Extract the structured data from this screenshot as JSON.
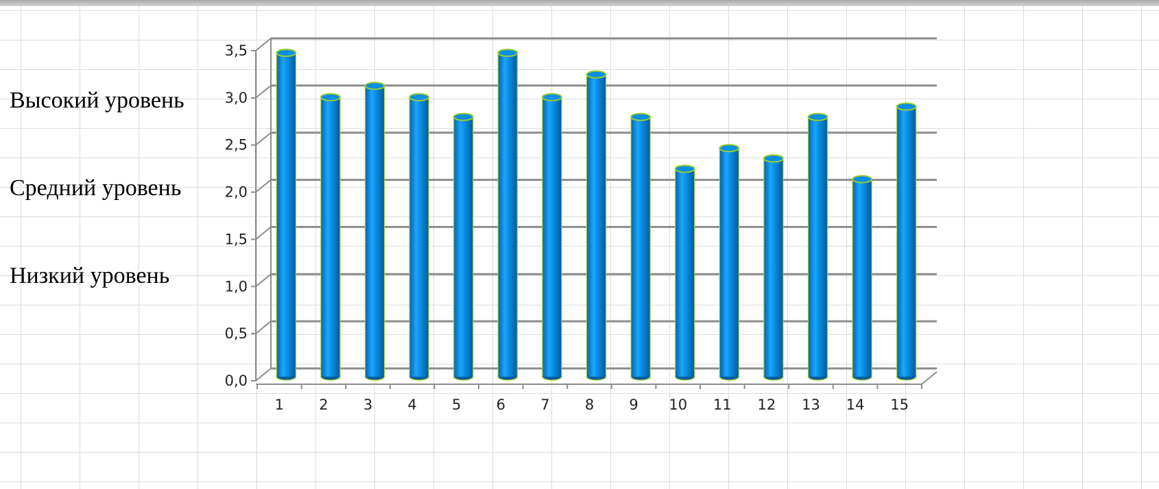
{
  "side_labels": {
    "high": "Высокий уровень",
    "medium": "Средний уровень",
    "low": "Низкий уровень"
  },
  "colors": {
    "bar_fill": "#0a8fe3",
    "bar_outline": "#9acd32",
    "gridline": "#8c8c8c",
    "axis": "#8c8c8c"
  },
  "chart_data": {
    "type": "bar",
    "bar_shape": "cylinder-3d",
    "categories": [
      "1",
      "2",
      "3",
      "4",
      "5",
      "6",
      "7",
      "8",
      "9",
      "10",
      "11",
      "12",
      "13",
      "14",
      "15"
    ],
    "values": [
      3.47,
      3.0,
      3.12,
      3.0,
      2.79,
      3.47,
      3.0,
      3.24,
      2.79,
      2.24,
      2.46,
      2.35,
      2.79,
      2.13,
      2.9
    ],
    "ylim": [
      0,
      3.5
    ],
    "yticks": [
      "0,0",
      "0,5",
      "1,0",
      "1,5",
      "2,0",
      "2,5",
      "3,0",
      "3,5"
    ],
    "grid": true,
    "legend": "none",
    "title": "",
    "xlabel": "",
    "ylabel": ""
  }
}
